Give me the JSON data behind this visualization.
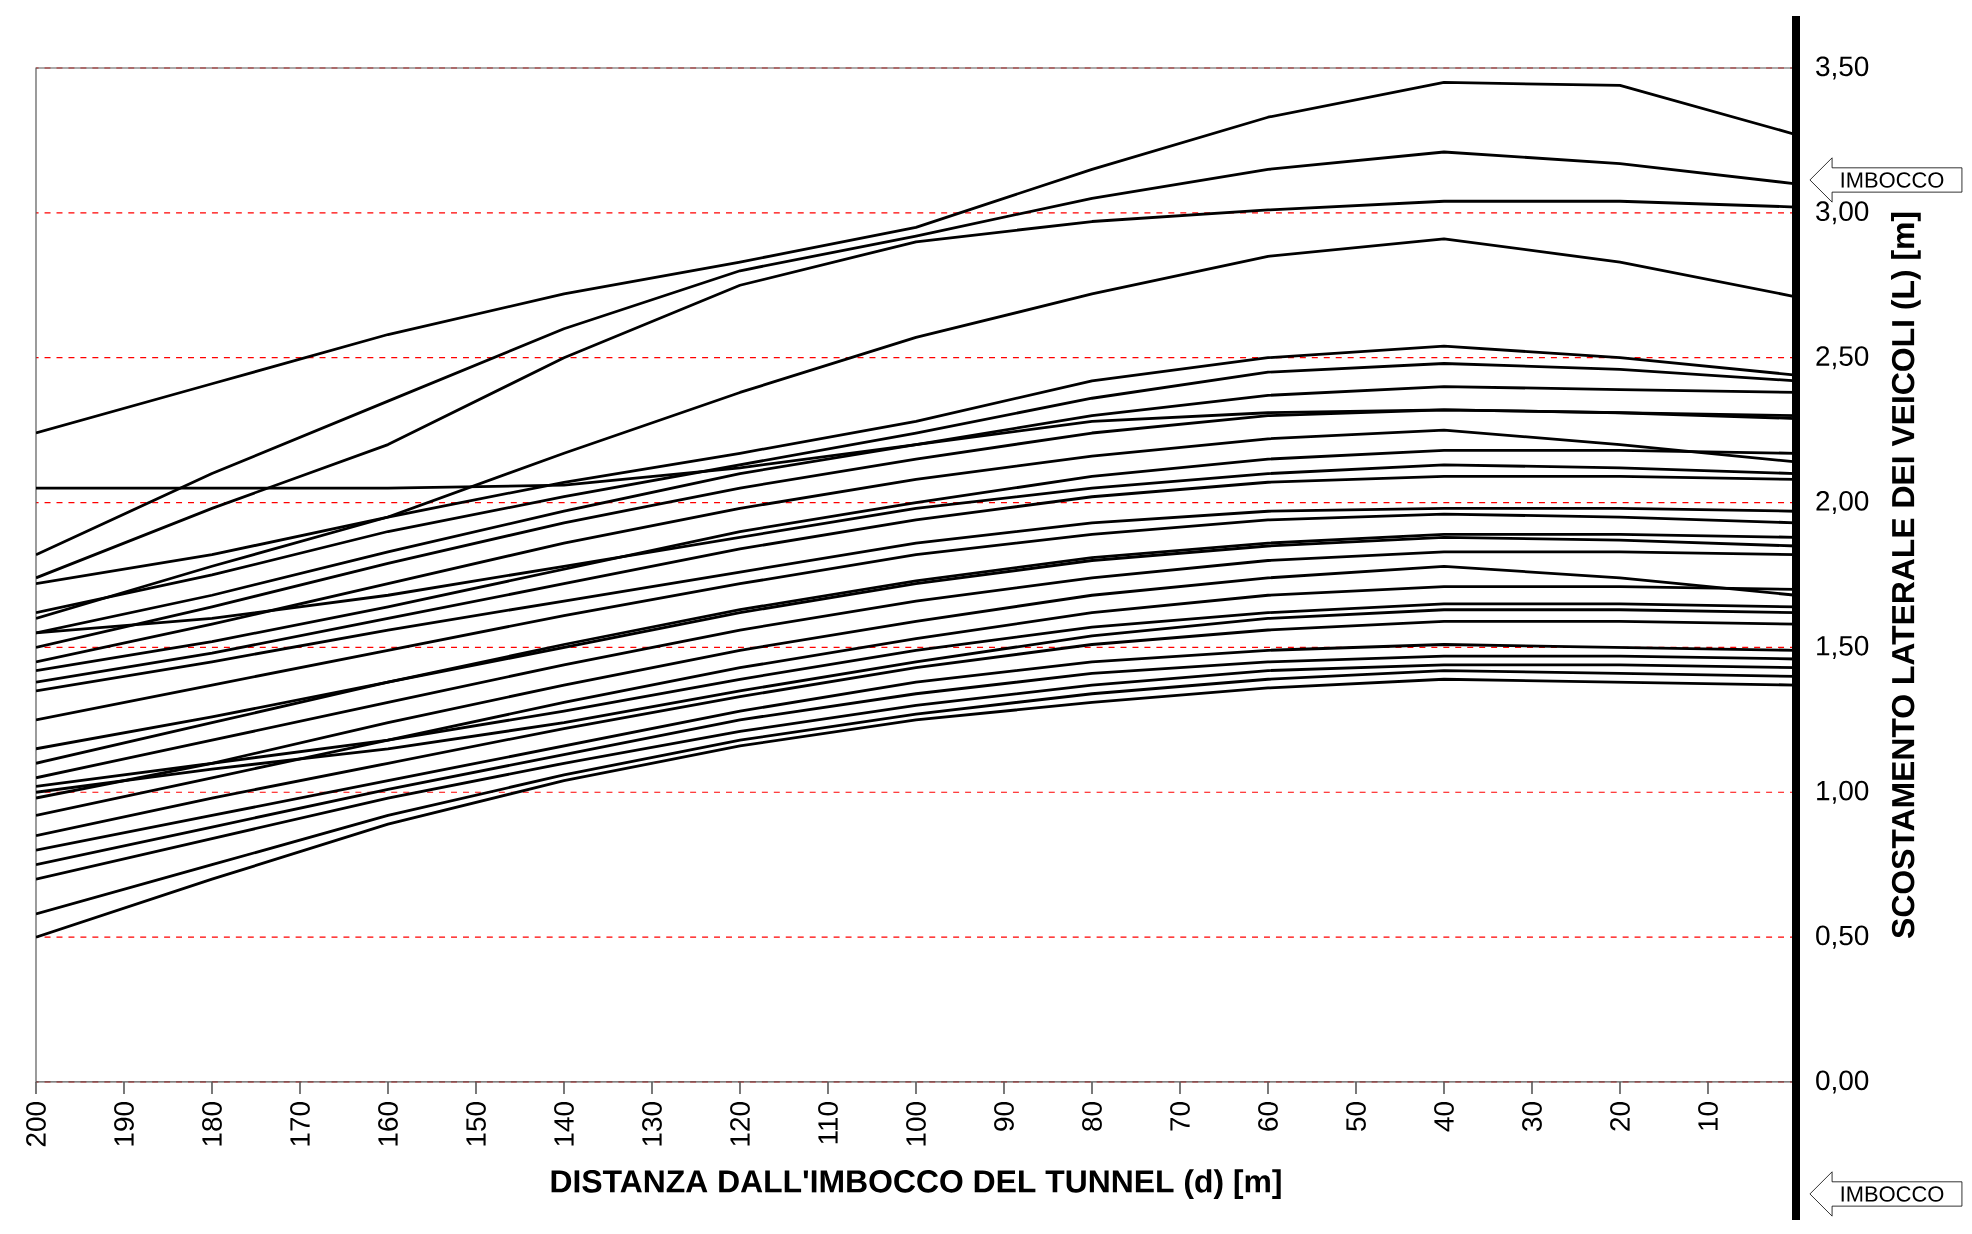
{
  "chart_data": {
    "type": "line",
    "xlabel": "DISTANZA DALL'IMBOCCO DEL TUNNEL (d) [m]",
    "ylabel": "SCOSTAMENTO LATERALE DEI VEICOLI  (L) [m]",
    "annotations": [
      "IMBOCCO",
      "IMBOCCO"
    ],
    "x": [
      200,
      180,
      160,
      140,
      120,
      100,
      80,
      60,
      40,
      20,
      0
    ],
    "xlim": [
      200,
      0
    ],
    "xticks": [
      200,
      190,
      180,
      170,
      160,
      150,
      140,
      130,
      120,
      110,
      100,
      90,
      80,
      70,
      60,
      50,
      40,
      30,
      20,
      10
    ],
    "ylim": [
      0,
      3.5
    ],
    "yticks": [
      {
        "value": 0,
        "label": "0,00"
      },
      {
        "value": 0.5,
        "label": "0,50"
      },
      {
        "value": 1,
        "label": "1,00"
      },
      {
        "value": 1.5,
        "label": "1,50"
      },
      {
        "value": 2,
        "label": "2,00"
      },
      {
        "value": 2.5,
        "label": "2,50"
      },
      {
        "value": 3,
        "label": "3,00"
      },
      {
        "value": 3.5,
        "label": "3,50"
      }
    ],
    "grid": "y",
    "marker": "none",
    "line_style": "solid",
    "series": [
      {
        "color": "#000000",
        "values": [
          2.24,
          2.41,
          2.58,
          2.72,
          2.83,
          2.95,
          3.15,
          3.33,
          3.45,
          3.44,
          3.27
        ]
      },
      {
        "color": "#000000",
        "values": [
          1.82,
          2.1,
          2.35,
          2.6,
          2.8,
          2.92,
          3.05,
          3.15,
          3.21,
          3.17,
          3.1
        ]
      },
      {
        "color": "#000000",
        "values": [
          1.74,
          1.98,
          2.2,
          2.5,
          2.75,
          2.9,
          2.97,
          3.01,
          3.04,
          3.04,
          3.02
        ]
      },
      {
        "color": "#000000",
        "values": [
          1.6,
          1.78,
          1.95,
          2.17,
          2.38,
          2.57,
          2.72,
          2.85,
          2.91,
          2.83,
          2.71
        ]
      },
      {
        "color": "#000000",
        "values": [
          2.05,
          2.05,
          2.05,
          2.06,
          2.12,
          2.2,
          2.28,
          2.31,
          2.32,
          2.31,
          2.3
        ]
      },
      {
        "color": "#000000",
        "values": [
          1.72,
          1.82,
          1.95,
          2.07,
          2.17,
          2.28,
          2.42,
          2.5,
          2.54,
          2.5,
          2.44
        ]
      },
      {
        "color": "#000000",
        "values": [
          1.62,
          1.75,
          1.9,
          2.02,
          2.13,
          2.24,
          2.36,
          2.45,
          2.48,
          2.46,
          2.42
        ]
      },
      {
        "color": "#000000",
        "values": [
          1.55,
          1.68,
          1.83,
          1.97,
          2.1,
          2.2,
          2.3,
          2.37,
          2.4,
          2.39,
          2.38
        ]
      },
      {
        "color": "#000000",
        "values": [
          1.5,
          1.64,
          1.79,
          1.93,
          2.05,
          2.15,
          2.24,
          2.3,
          2.32,
          2.31,
          2.29
        ]
      },
      {
        "color": "#000000",
        "values": [
          1.45,
          1.58,
          1.72,
          1.86,
          1.98,
          2.08,
          2.16,
          2.22,
          2.25,
          2.2,
          2.14
        ]
      },
      {
        "color": "#000000",
        "values": [
          1.42,
          1.52,
          1.64,
          1.77,
          1.9,
          2.0,
          2.09,
          2.15,
          2.18,
          2.18,
          2.17
        ]
      },
      {
        "color": "#000000",
        "values": [
          1.55,
          1.6,
          1.68,
          1.78,
          1.88,
          1.98,
          2.05,
          2.1,
          2.13,
          2.12,
          2.1
        ]
      },
      {
        "color": "#000000",
        "values": [
          1.38,
          1.48,
          1.6,
          1.72,
          1.84,
          1.94,
          2.02,
          2.07,
          2.09,
          2.09,
          2.08
        ]
      },
      {
        "color": "#000000",
        "values": [
          1.35,
          1.45,
          1.56,
          1.66,
          1.76,
          1.86,
          1.93,
          1.97,
          1.98,
          1.98,
          1.97
        ]
      },
      {
        "color": "#000000",
        "values": [
          1.25,
          1.37,
          1.49,
          1.61,
          1.72,
          1.82,
          1.89,
          1.94,
          1.96,
          1.95,
          1.93
        ]
      },
      {
        "color": "#000000",
        "values": [
          1.1,
          1.24,
          1.38,
          1.51,
          1.63,
          1.73,
          1.81,
          1.86,
          1.89,
          1.89,
          1.88
        ]
      },
      {
        "color": "#000000",
        "values": [
          1.15,
          1.26,
          1.38,
          1.5,
          1.62,
          1.72,
          1.8,
          1.85,
          1.88,
          1.87,
          1.85
        ]
      },
      {
        "color": "#000000",
        "values": [
          1.05,
          1.18,
          1.31,
          1.44,
          1.56,
          1.66,
          1.74,
          1.8,
          1.83,
          1.83,
          1.82
        ]
      },
      {
        "color": "#000000",
        "values": [
          0.98,
          1.1,
          1.24,
          1.37,
          1.49,
          1.59,
          1.68,
          1.74,
          1.78,
          1.74,
          1.68
        ]
      },
      {
        "color": "#000000",
        "values": [
          0.92,
          1.05,
          1.18,
          1.31,
          1.43,
          1.53,
          1.62,
          1.68,
          1.71,
          1.71,
          1.7
        ]
      },
      {
        "color": "#000000",
        "values": [
          1.02,
          1.1,
          1.18,
          1.28,
          1.39,
          1.49,
          1.57,
          1.62,
          1.65,
          1.65,
          1.64
        ]
      },
      {
        "color": "#000000",
        "values": [
          1.0,
          1.08,
          1.15,
          1.24,
          1.35,
          1.45,
          1.54,
          1.6,
          1.63,
          1.63,
          1.62
        ]
      },
      {
        "color": "#000000",
        "values": [
          0.85,
          0.98,
          1.1,
          1.22,
          1.33,
          1.43,
          1.51,
          1.56,
          1.59,
          1.59,
          1.58
        ]
      },
      {
        "color": "#000000",
        "values": [
          0.8,
          0.92,
          1.04,
          1.16,
          1.28,
          1.38,
          1.45,
          1.49,
          1.51,
          1.5,
          1.49
        ]
      },
      {
        "color": "#000000",
        "values": [
          0.75,
          0.88,
          1.01,
          1.13,
          1.25,
          1.34,
          1.41,
          1.45,
          1.47,
          1.47,
          1.46
        ]
      },
      {
        "color": "#000000",
        "values": [
          0.7,
          0.84,
          0.98,
          1.1,
          1.21,
          1.3,
          1.37,
          1.42,
          1.44,
          1.44,
          1.43
        ]
      },
      {
        "color": "#000000",
        "values": [
          0.58,
          0.75,
          0.92,
          1.06,
          1.18,
          1.27,
          1.34,
          1.39,
          1.42,
          1.41,
          1.4
        ]
      },
      {
        "color": "#000000",
        "values": [
          0.5,
          0.7,
          0.89,
          1.04,
          1.16,
          1.25,
          1.31,
          1.36,
          1.39,
          1.38,
          1.37
        ]
      }
    ]
  }
}
